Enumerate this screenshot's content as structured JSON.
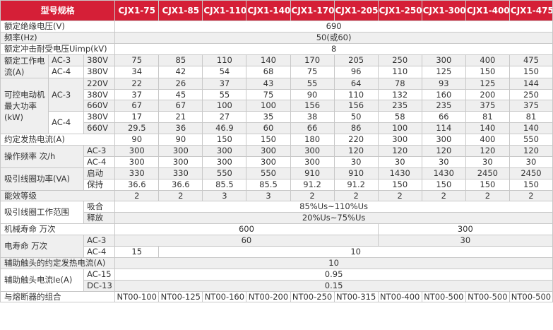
{
  "header": {
    "model_label": "型号规格",
    "models": [
      "CJX1-75",
      "CJX1-85",
      "CJX1-110",
      "CJX1-140",
      "CJX1-170",
      "CJX1-205",
      "CJX1-250",
      "CJX1-300",
      "CJX1-400",
      "CJX1-475"
    ]
  },
  "rows": {
    "insulation_voltage": {
      "label": "额定绝缘电压(V)",
      "value": "690"
    },
    "frequency": {
      "label": "频率(Hz)",
      "value": "50(或60)"
    },
    "impulse_voltage": {
      "label": "额定冲击耐受电压Uimp(kV)",
      "value": "8"
    },
    "rated_current": {
      "label": "额定工作电流(A)",
      "ac3": {
        "cat": "AC-3",
        "volt": "380V",
        "values": [
          "75",
          "85",
          "110",
          "140",
          "170",
          "205",
          "250",
          "300",
          "400",
          "475"
        ]
      },
      "ac4": {
        "cat": "AC-4",
        "volt": "380V",
        "values": [
          "34",
          "42",
          "54",
          "68",
          "75",
          "96",
          "110",
          "125",
          "150",
          "150"
        ]
      }
    },
    "motor_power": {
      "label": "可控电动机最大功率(kW)",
      "ac3_label": "AC-3",
      "ac3_220": {
        "volt": "220V",
        "values": [
          "22",
          "26",
          "37",
          "43",
          "55",
          "64",
          "78",
          "93",
          "125",
          "144"
        ]
      },
      "ac3_380": {
        "volt": "380V",
        "values": [
          "37",
          "45",
          "55",
          "75",
          "90",
          "110",
          "132",
          "160",
          "200",
          "250"
        ]
      },
      "ac3_660": {
        "volt": "660V",
        "values": [
          "67",
          "67",
          "100",
          "100",
          "156",
          "156",
          "235",
          "235",
          "375",
          "375"
        ]
      },
      "ac4_label": "AC-4",
      "ac4_380": {
        "volt": "380V",
        "values": [
          "17",
          "21",
          "27",
          "35",
          "38",
          "50",
          "58",
          "66",
          "81",
          "81"
        ]
      },
      "ac4_660": {
        "volt": "660V",
        "values": [
          "29.5",
          "36",
          "46.9",
          "60",
          "66",
          "86",
          "100",
          "114",
          "140",
          "140"
        ]
      }
    },
    "thermal_current": {
      "label": "约定发热电流(A)",
      "values": [
        "90",
        "90",
        "150",
        "150",
        "180",
        "220",
        "300",
        "300",
        "400",
        "550"
      ]
    },
    "op_frequency": {
      "label": "操作频率 次/h",
      "ac3": {
        "cat": "AC-3",
        "values": [
          "300",
          "300",
          "300",
          "300",
          "300",
          "120",
          "120",
          "120",
          "120",
          "120"
        ]
      },
      "ac4": {
        "cat": "AC-4",
        "values": [
          "300",
          "300",
          "300",
          "300",
          "300",
          "30",
          "30",
          "30",
          "30",
          "30"
        ]
      }
    },
    "coil_power": {
      "label": "吸引线圈功率(VA)",
      "start": {
        "cat": "启动",
        "values": [
          "330",
          "330",
          "550",
          "550",
          "910",
          "910",
          "1430",
          "1430",
          "2450",
          "2450"
        ]
      },
      "hold": {
        "cat": "保持",
        "values": [
          "36.6",
          "36.6",
          "85.5",
          "85.5",
          "91.2",
          "91.2",
          "150",
          "150",
          "150",
          "150"
        ]
      }
    },
    "efficiency_class": {
      "label": "能效等级",
      "values": [
        "2",
        "2",
        "3",
        "3",
        "2",
        "2",
        "2",
        "2",
        "2",
        "2"
      ]
    },
    "coil_range": {
      "label": "吸引线圈工作范围",
      "pull": {
        "cat": "吸合",
        "value": "85%Us~110%Us"
      },
      "release": {
        "cat": "释放",
        "value": "20%Us~75%Us"
      }
    },
    "mech_life": {
      "label": "机械寿命 万次",
      "value_a": "600",
      "value_b": "300"
    },
    "elec_life": {
      "label": "电寿命 万次",
      "ac3": {
        "cat": "AC-3",
        "value_a": "60",
        "value_b": "30"
      },
      "ac4": {
        "cat": "AC-4",
        "value_a": "15",
        "value_b": "10"
      }
    },
    "aux_thermal": {
      "label": "辅助触头的约定发热电流(A)",
      "value": "10"
    },
    "aux_current": {
      "label": "辅助触头电流Ie(A)",
      "ac15": {
        "cat": "AC-15",
        "value": "0.95"
      },
      "dc13": {
        "cat": "DC-13",
        "value": "0.15"
      }
    },
    "fuse": {
      "label": "与熔断器的组合",
      "values": [
        "NT00-100",
        "NT00-125",
        "NT00-160",
        "NT00-200",
        "NT00-250",
        "NT00-315",
        "NT00-400",
        "NT00-500",
        "NT00-500",
        "NT00-500"
      ]
    }
  }
}
